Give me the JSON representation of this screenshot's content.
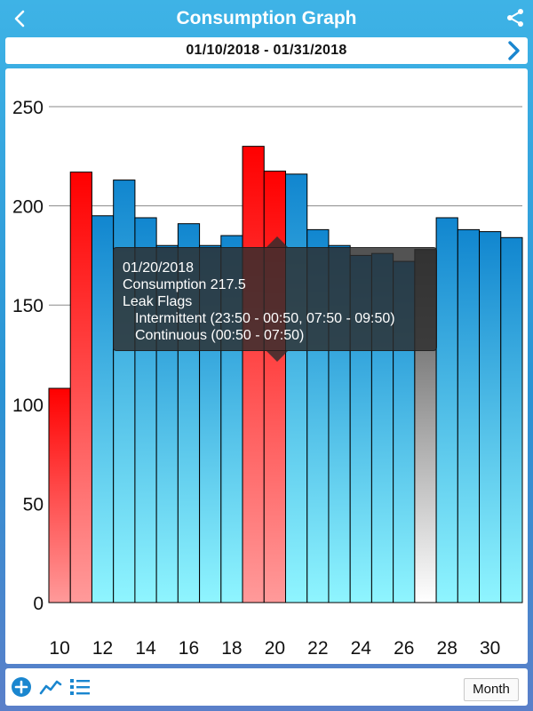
{
  "header": {
    "title": "Consumption Graph",
    "back_icon": "chevron-left-icon",
    "share_icon": "share-icon"
  },
  "date_range": {
    "label": "01/10/2018 - 01/31/2018",
    "next_icon": "chevron-right-icon"
  },
  "chart_data": {
    "type": "bar",
    "categories": [
      "10",
      "11",
      "12",
      "13",
      "14",
      "15",
      "16",
      "17",
      "18",
      "19",
      "20",
      "21",
      "22",
      "23",
      "24",
      "25",
      "26",
      "27",
      "28",
      "29",
      "30",
      "31"
    ],
    "values": [
      108,
      217,
      195,
      213,
      194,
      180,
      191,
      180,
      185,
      230,
      217.5,
      216,
      188,
      180,
      175,
      176,
      172,
      178,
      194,
      188,
      187,
      184
    ],
    "bar_status": [
      "leak",
      "leak",
      "normal",
      "normal",
      "normal",
      "normal",
      "normal",
      "normal",
      "normal",
      "leak",
      "leak",
      "normal",
      "normal",
      "normal",
      "normal",
      "normal",
      "normal",
      "missing",
      "normal",
      "normal",
      "normal",
      "normal"
    ],
    "x_tick_labels": [
      "10",
      "12",
      "14",
      "16",
      "18",
      "20",
      "22",
      "24",
      "26",
      "28",
      "30"
    ],
    "y_ticks": [
      "0",
      "50",
      "100",
      "150",
      "200",
      "250"
    ],
    "ylim": [
      0,
      250
    ],
    "grid": true,
    "colors": {
      "normal": "#1186cf",
      "normal_light": "#8ff5ff",
      "leak": "#ff0000",
      "leak_light": "#ff9a9a",
      "missing": "#4a4a4a",
      "missing_light": "#ffffff"
    }
  },
  "tooltip": {
    "date": "01/20/2018",
    "consumption": "Consumption 217.5",
    "leak_flags": "Leak Flags",
    "intermittent": "Intermittent (23:50 - 00:50, 07:50 - 09:50)",
    "continuous": "Continuous (00:50 - 07:50)"
  },
  "bottom_bar": {
    "add_icon": "add-circle-icon",
    "line_icon": "line-chart-icon",
    "list_icon": "list-icon",
    "period_label": "Month"
  }
}
